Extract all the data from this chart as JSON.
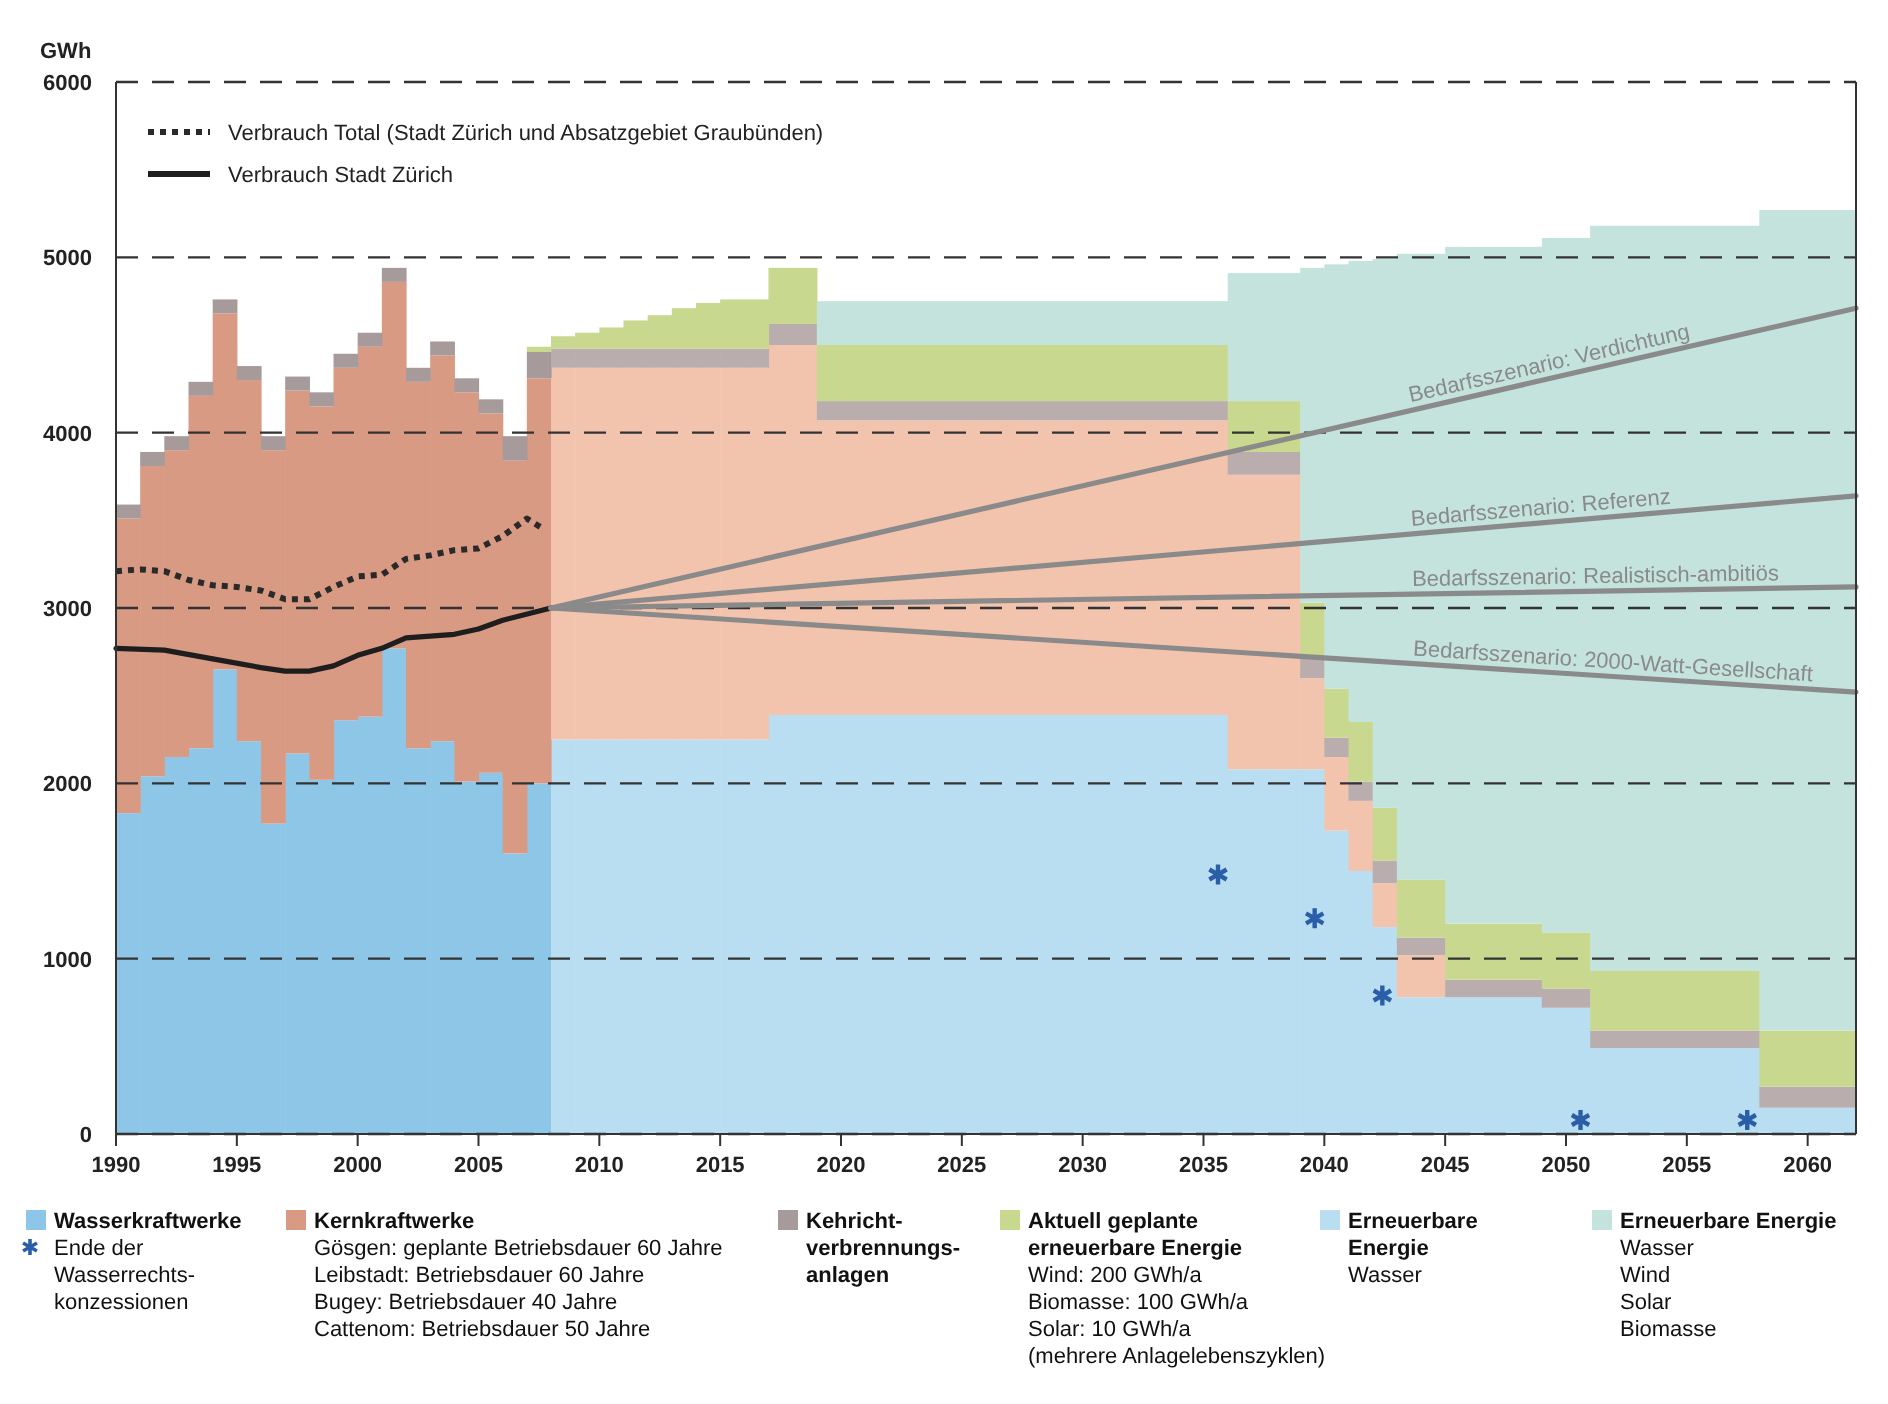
{
  "chart_data": {
    "type": "bar",
    "stacked": true,
    "ylabel": "GWh",
    "xlim": [
      1990,
      2062
    ],
    "xticks": [
      1990,
      1995,
      2000,
      2005,
      2010,
      2015,
      2020,
      2025,
      2030,
      2035,
      2040,
      2045,
      2050,
      2055,
      2060
    ],
    "ylim": [
      0,
      6000
    ],
    "yticks": [
      0,
      1000,
      2000,
      3000,
      4000,
      5000,
      6000
    ],
    "grid": "y",
    "legend": "bottom",
    "x": [
      1990.5,
      1991.5,
      1992.5,
      1993.5,
      1994.5,
      1995.5,
      1996.5,
      1997.5,
      1998.5,
      1999.5,
      2000.5,
      2001.5,
      2002.5,
      2003.5,
      2004.5,
      2005.5,
      2006.5,
      2007.5,
      2008.5,
      2009.5,
      2010.5,
      2011.5,
      2012.5,
      2013.5,
      2014.5,
      2015.5,
      2016.5,
      2018,
      2027.5,
      2037.5,
      2039.5,
      2040.5,
      2041.5,
      2042.5,
      2044,
      2047,
      2050,
      2054.5,
      2060
    ],
    "series": [
      {
        "name": "Wasserkraftwerke",
        "color": "#8ec6e8",
        "values": [
          1830,
          2040,
          2150,
          2200,
          2650,
          2240,
          1770,
          2170,
          2020,
          2360,
          2380,
          2770,
          2200,
          2240,
          2010,
          2060,
          1600,
          2000,
          null,
          null,
          null,
          null,
          null,
          null,
          null,
          null,
          null,
          null,
          null,
          null,
          null,
          null,
          null,
          null,
          null,
          null,
          null,
          null,
          null
        ]
      },
      {
        "name": "Erneuerbare Energie",
        "color": "#b9def2",
        "values": [
          null,
          null,
          null,
          null,
          null,
          null,
          null,
          null,
          null,
          null,
          null,
          null,
          null,
          null,
          null,
          null,
          null,
          null,
          2250,
          2250,
          2250,
          2250,
          2250,
          2250,
          2250,
          2250,
          2250,
          2390,
          2390,
          2080,
          2080,
          1730,
          1500,
          1180,
          780,
          780,
          720,
          490,
          150
        ]
      },
      {
        "name": "Kernkraftwerke",
        "color": "#d99a84",
        "values": [
          1680,
          1770,
          1750,
          2010,
          2030,
          2060,
          2130,
          2070,
          2130,
          2010,
          2110,
          2090,
          2090,
          2200,
          2220,
          2050,
          2240,
          2310,
          2120,
          2120,
          2120,
          2120,
          2120,
          2120,
          2120,
          2120,
          2120,
          2110,
          1680,
          1680,
          520,
          420,
          400,
          250,
          240,
          null,
          null,
          null,
          null
        ],
        "colors": [
          "#d99a84",
          "#d99a84",
          "#d99a84",
          "#d99a84",
          "#d99a84",
          "#d99a84",
          "#d99a84",
          "#d99a84",
          "#d99a84",
          "#d99a84",
          "#d99a84",
          "#d99a84",
          "#d99a84",
          "#d99a84",
          "#d99a84",
          "#d99a84",
          "#d99a84",
          "#d99a84",
          "#f2c4ae",
          "#f2c4ae",
          "#f2c4ae",
          "#f2c4ae",
          "#f2c4ae",
          "#f2c4ae",
          "#f2c4ae",
          "#f2c4ae",
          "#f2c4ae",
          "#f2c4ae",
          "#f2c4ae",
          "#f2c4ae",
          "#f2c4ae",
          "#f2c4ae",
          "#f2c4ae",
          "#f2c4ae",
          "#f2c4ae",
          "#f2c4ae",
          "#f2c4ae",
          "#f2c4ae",
          "#f2c4ae"
        ]
      },
      {
        "name": "Kehricht-verbrennungs-anlagen",
        "color": "#a69a9a",
        "values": [
          80,
          80,
          80,
          80,
          80,
          80,
          80,
          80,
          80,
          80,
          80,
          80,
          80,
          80,
          80,
          80,
          140,
          150,
          110,
          110,
          110,
          110,
          110,
          110,
          110,
          110,
          110,
          120,
          110,
          130,
          130,
          110,
          110,
          130,
          100,
          100,
          110,
          100,
          120
        ],
        "colors": [
          "#a69a9a",
          "#a69a9a",
          "#a69a9a",
          "#a69a9a",
          "#a69a9a",
          "#a69a9a",
          "#a69a9a",
          "#a69a9a",
          "#a69a9a",
          "#a69a9a",
          "#a69a9a",
          "#a69a9a",
          "#a69a9a",
          "#a69a9a",
          "#a69a9a",
          "#a69a9a",
          "#a69a9a",
          "#a69a9a",
          "#b9adad",
          "#b9adad",
          "#b9adad",
          "#b9adad",
          "#b9adad",
          "#b9adad",
          "#b9adad",
          "#b9adad",
          "#b9adad",
          "#b9adad",
          "#b9adad",
          "#b9adad",
          "#b9adad",
          "#b9adad",
          "#b9adad",
          "#b9adad",
          "#b9adad",
          "#b9adad",
          "#b9adad",
          "#b9adad",
          "#b9adad"
        ]
      },
      {
        "name": "Aktuell geplante erneuerbare Energie",
        "color": "#c8d88e",
        "values": [
          null,
          null,
          null,
          null,
          null,
          null,
          null,
          null,
          null,
          null,
          null,
          null,
          null,
          null,
          null,
          null,
          null,
          30,
          70,
          90,
          120,
          160,
          190,
          230,
          260,
          280,
          280,
          320,
          320,
          290,
          300,
          280,
          340,
          300,
          330,
          320,
          320,
          340,
          320
        ]
      },
      {
        "name": "Erneuerbare Energie",
        "color": "#c3e3dc",
        "values": [
          null,
          null,
          null,
          null,
          null,
          null,
          null,
          null,
          null,
          null,
          null,
          null,
          null,
          null,
          null,
          null,
          null,
          null,
          null,
          null,
          null,
          null,
          null,
          null,
          null,
          null,
          null,
          null,
          250,
          730,
          1910,
          2420,
          2630,
          3130,
          3570,
          3860,
          3960,
          4250,
          4680
        ]
      },
      {
        "type": "line",
        "name": "Verbrauch Total (Stadt Zürich und Absatzgebiet Graubünden)",
        "color": "#2a2a2a",
        "line_style": "dotted",
        "x": [
          1990,
          1991,
          1992,
          1993,
          1994,
          1995,
          1996,
          1997,
          1998,
          1999,
          2000,
          2001,
          2002,
          2003,
          2004,
          2005,
          2006,
          2007,
          2007.7
        ],
        "values": [
          3210,
          3220,
          3210,
          3160,
          3130,
          3120,
          3100,
          3050,
          3050,
          3120,
          3180,
          3190,
          3280,
          3300,
          3330,
          3340,
          3410,
          3510,
          3450
        ]
      },
      {
        "type": "line",
        "name": "Verbrauch Stadt Zürich",
        "color": "#1e1e1e",
        "line_style": "solid",
        "x": [
          1990,
          1992,
          1994,
          1996,
          1997,
          1998,
          1999,
          2000,
          2001,
          2002,
          2004,
          2005,
          2006,
          2008
        ],
        "values": [
          2770,
          2760,
          2710,
          2660,
          2640,
          2640,
          2670,
          2730,
          2770,
          2830,
          2850,
          2880,
          2930,
          3000
        ]
      },
      {
        "type": "line",
        "name": "Bedarfsszenario: Verdichtung",
        "color": "#8a8a8a",
        "line_style": "solid",
        "x": [
          2008,
          2062
        ],
        "values": [
          3000,
          4710
        ]
      },
      {
        "type": "line",
        "name": "Bedarfsszenario: Referenz",
        "color": "#8a8a8a",
        "line_style": "solid",
        "x": [
          2008,
          2062
        ],
        "values": [
          3000,
          3640
        ]
      },
      {
        "type": "line",
        "name": "Bedarfsszenario: Realistisch-ambitiös",
        "color": "#8a8a8a",
        "line_style": "solid",
        "x": [
          2008,
          2062
        ],
        "values": [
          3000,
          3120
        ]
      },
      {
        "type": "line",
        "name": "Bedarfsszenario: 2000-Watt-Gesellschaft",
        "color": "#8a8a8a",
        "line_style": "solid",
        "x": [
          2008,
          2062
        ],
        "values": [
          3000,
          2520
        ]
      },
      {
        "type": "scatter",
        "name": "Ende der Wasserrechts-konzessionen",
        "color": "#2b5ea8",
        "marker": "cross",
        "x": [
          2035.6,
          2039.6,
          2042.4,
          2050.6,
          2057.5
        ],
        "values": [
          1480,
          1230,
          790,
          80,
          80
        ]
      }
    ],
    "annotations": [
      "Gösgen: geplante Betriebsdauer 60 Jahre",
      "Leibstadt: Betriebsdauer 60 Jahre",
      "Bugey: Betriebsdauer 40 Jahre",
      "Cattenom: Betriebsdauer 50 Jahre",
      "Wind: 200 GWh/a",
      "Biomasse: 100 GWh/a",
      "Solar: 10 GWh/a",
      "(mehrere Anlagelebenszyklen)",
      "Wasser",
      "Wasser",
      "Wind",
      "Solar",
      "Biomasse"
    ]
  }
}
